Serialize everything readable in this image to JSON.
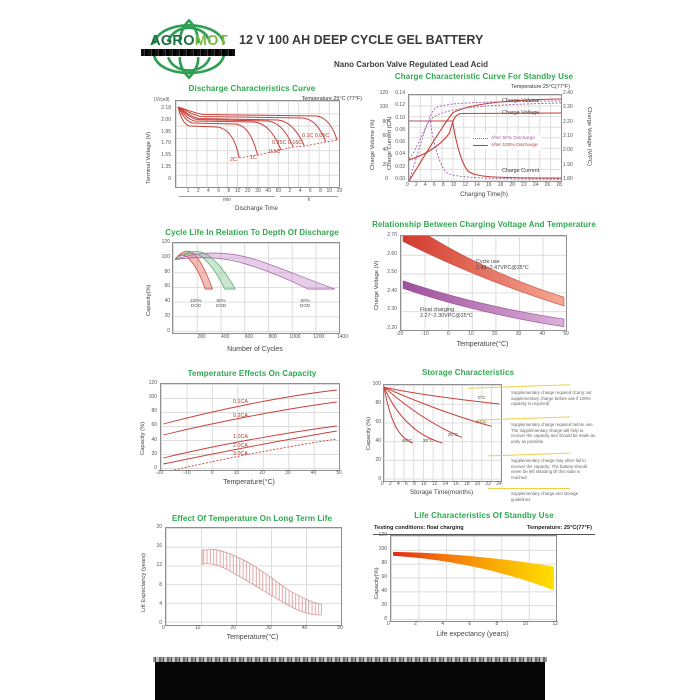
{
  "header": {
    "brand_primary": "AGRO",
    "brand_secondary": "MOT",
    "title": "12 V 100 AH DEEP CYCLE GEL BATTERY",
    "subtitle": "Nano Carbon Valve Regulated Lead Acid"
  },
  "colors": {
    "title_green": "#2fa84f",
    "brand_dark_green": "#1b6e3f",
    "brand_light_green": "#7cb947",
    "curve_red": "#c8403a",
    "curve_purple": "#9e5fa7",
    "band_green": "#7cc28c",
    "band_purple": "#c07ec2",
    "annotation_yellow": "#ecd04a",
    "life_gradient": [
      "#e02818",
      "#f97f08",
      "#ffdf00"
    ]
  },
  "chart_data": [
    {
      "type": "line",
      "title": "Discharge Characteristics Curve",
      "note": "Temperature 25°C (77°F)",
      "y_unit": "(V/cell)",
      "ylabel": "Terminal Voltage (V)",
      "xlabel": "Discharge Time",
      "y_ticks": [
        "2.18",
        "2.00",
        "1.85",
        "1.70",
        "1.55",
        "1.35",
        "0"
      ],
      "x_ticks": [
        "1",
        "2",
        "4",
        "6",
        "8",
        "10",
        "20",
        "30",
        "40",
        "60",
        "2",
        "4",
        "6",
        "8",
        "10",
        "20"
      ],
      "x_units": [
        "min",
        "h"
      ],
      "series": [
        {
          "name": "2C",
          "plateau_v": 1.93,
          "end_time": "11 min",
          "end_v": 1.62
        },
        {
          "name": "1C",
          "plateau_v": 1.97,
          "end_time": "30 min",
          "end_v": 1.64
        },
        {
          "name": "0.5C",
          "plateau_v": 2.0,
          "end_time": "70 min",
          "end_v": 1.68
        },
        {
          "name": "0.25C",
          "plateau_v": 2.02,
          "end_time": "3.5 h",
          "end_v": 1.72
        },
        {
          "name": "0.16C",
          "plateau_v": 2.03,
          "end_time": "5.5 h",
          "end_v": 1.73
        },
        {
          "name": "0.1C",
          "plateau_v": 2.05,
          "end_time": "10 h",
          "end_v": 1.76
        },
        {
          "name": "0.05C",
          "plateau_v": 2.07,
          "end_time": "20 h",
          "end_v": 1.78
        }
      ],
      "curve_labels": [
        {
          "text": "2C"
        },
        {
          "text": "1C"
        },
        {
          "text": "0.5C"
        },
        {
          "text": "0.25C 0.16C"
        },
        {
          "text": "0.1C 0.05C"
        }
      ]
    },
    {
      "type": "line",
      "title": "Charge Characteristic Curve For Standby Use",
      "note": "Temperature:25°C(77°F)",
      "axes": {
        "volume": {
          "label": "Charge Volume (%)",
          "ticks": [
            "120",
            "100",
            "80",
            "60",
            "40",
            "20",
            "0"
          ]
        },
        "current": {
          "label": "Charge Current (CA)",
          "ticks": [
            "0.14",
            "0.12",
            "0.10",
            "0.08",
            "0.06",
            "0.04",
            "0.02",
            "0.00"
          ]
        },
        "voltage": {
          "label": "Charge Voltage (V/PC)",
          "ticks": [
            "2.40",
            "2.30",
            "2.20",
            "2.10",
            "2.00",
            "1.90",
            "1.80"
          ]
        }
      },
      "xlabel": "Charging Time(h)",
      "x_ticks": [
        "0",
        "2",
        "4",
        "6",
        "8",
        "10",
        "12",
        "14",
        "16",
        "18",
        "20",
        "22",
        "24",
        "26",
        "28"
      ],
      "legend": [
        {
          "label": "After 50% Discharge",
          "style": "dotted"
        },
        {
          "label": "After 100% Discharge",
          "style": "solid"
        }
      ],
      "curve_labels": [
        {
          "text": "Charge Volume"
        },
        {
          "text": "Charge Voltage"
        },
        {
          "text": "Charge Current"
        }
      ],
      "series": [
        {
          "name": "Charge Volume (after 100% discharge)",
          "x": [
            0,
            2,
            4,
            6,
            8,
            12,
            16,
            20,
            24,
            28
          ],
          "y": [
            0,
            28,
            55,
            80,
            98,
            110,
            114,
            115,
            116,
            117
          ]
        },
        {
          "name": "Charge Volume (after 50% discharge)",
          "x": [
            0,
            2,
            4,
            6,
            8,
            12,
            16,
            20,
            24,
            28
          ],
          "y": [
            0,
            45,
            85,
            100,
            106,
            110,
            112,
            113,
            114,
            115
          ]
        },
        {
          "name": "Charge Voltage (after 100% discharge)",
          "x": [
            0,
            2,
            4,
            6,
            8,
            12,
            16,
            20,
            24,
            28
          ],
          "y": [
            1.95,
            1.99,
            2.04,
            2.12,
            2.26,
            2.28,
            2.28,
            2.28,
            2.28,
            2.28
          ]
        },
        {
          "name": "Charge Voltage (after 50% discharge)",
          "x": [
            0,
            2,
            4,
            6,
            8,
            12,
            16,
            20,
            24,
            28
          ],
          "y": [
            1.96,
            2.05,
            2.18,
            2.27,
            2.3,
            2.32,
            2.33,
            2.34,
            2.35,
            2.35
          ]
        },
        {
          "name": "Charge Current (after 100% discharge)",
          "x": [
            0,
            4,
            8,
            9,
            10,
            12,
            16,
            28
          ],
          "y": [
            0.1,
            0.1,
            0.1,
            0.06,
            0.03,
            0.01,
            0.005,
            0.005
          ]
        },
        {
          "name": "Charge Current (after 50% discharge)",
          "x": [
            0,
            2,
            4,
            5,
            6,
            8,
            12,
            28
          ],
          "y": [
            0.1,
            0.1,
            0.1,
            0.05,
            0.03,
            0.01,
            0.005,
            0.005
          ]
        }
      ]
    },
    {
      "type": "area",
      "title": "Cycle Life In Relation To Depth Of Discharge",
      "ylabel": "Capacity(%)",
      "xlabel": "Number of Cycles",
      "y_ticks": [
        "120",
        "100",
        "80",
        "60",
        "40",
        "20",
        "0"
      ],
      "x_ticks": [
        "200",
        "400",
        "600",
        "800",
        "1000",
        "1200",
        "1400"
      ],
      "bands": [
        {
          "label": "100%\nDOD",
          "color": "#e2574c",
          "approx_end_cycles": 320,
          "peak_capacity": 110
        },
        {
          "label": "80%\nDOD",
          "color": "#7cc28c",
          "approx_end_cycles": 560,
          "peak_capacity": 108
        },
        {
          "label": "50%\nDOD",
          "color": "#c07ec2",
          "approx_end_cycles": 1400,
          "peak_capacity": 106
        }
      ]
    },
    {
      "type": "area",
      "title": "Relationship Between Charging Voltage And Temperature",
      "ylabel": "Charge Voltage (V)",
      "xlabel": "Temperature(°C)",
      "y_ticks": [
        "2.70",
        "2.60",
        "2.50",
        "2.40",
        "2.30",
        "2.20"
      ],
      "x_ticks": [
        "-20",
        "-10",
        "0",
        "10",
        "20",
        "30",
        "40",
        "50"
      ],
      "bands": [
        {
          "label": "Cycle use\n2.43~2.47VPC@25°C",
          "color": "#d9473b",
          "v_at_minus20": [
            2.68,
            2.76
          ],
          "v_at_50": [
            2.33,
            2.38
          ]
        },
        {
          "label": "Float charging\n2.27~2.30VPC@25°C",
          "color": "#a4539f",
          "v_at_minus20": [
            2.42,
            2.47
          ],
          "v_at_50": [
            2.22,
            2.26
          ]
        }
      ]
    },
    {
      "type": "line",
      "title": "Temperature Effects On Capacity",
      "ylabel": "Capacity (%)",
      "xlabel": "Temperature(°C)",
      "y_ticks": [
        "120",
        "100",
        "80",
        "60",
        "40",
        "20",
        "0"
      ],
      "x_ticks": [
        "-20",
        "-10",
        "0",
        "10",
        "20",
        "30",
        "40",
        "50"
      ],
      "series": [
        {
          "name": "0.1CA",
          "x": [
            -20,
            0,
            20,
            50
          ],
          "y": [
            65,
            83,
            98,
            115
          ]
        },
        {
          "name": "0.2CA",
          "x": [
            -20,
            0,
            20,
            50
          ],
          "y": [
            50,
            68,
            82,
            97
          ]
        },
        {
          "name": "1.0CA",
          "x": [
            -20,
            0,
            20,
            50
          ],
          "y": [
            17,
            35,
            48,
            63
          ]
        },
        {
          "name": "2.0CA",
          "x": [
            -20,
            0,
            20,
            50
          ],
          "y": [
            8,
            24,
            38,
            55
          ]
        },
        {
          "name": "3.0CA",
          "style": "dashed",
          "x": [
            -15,
            0,
            20,
            50
          ],
          "y": [
            0,
            14,
            28,
            44
          ]
        }
      ]
    },
    {
      "type": "line",
      "title": "Storage Characteristics",
      "ylabel": "Capacity (%)",
      "xlabel": "Storage Time(months)",
      "y_ticks": [
        "100",
        "80",
        "60",
        "40",
        "20",
        "0"
      ],
      "x_ticks": [
        "0",
        "2",
        "4",
        "6",
        "8",
        "10",
        "12",
        "14",
        "16",
        "18",
        "20",
        "22",
        "24"
      ],
      "series": [
        {
          "name": "0°C",
          "x": [
            0,
            6,
            12,
            18,
            24
          ],
          "y": [
            100,
            95,
            90,
            86,
            82
          ]
        },
        {
          "name": "10°C",
          "x": [
            0,
            6,
            12,
            18,
            22
          ],
          "y": [
            100,
            88,
            76,
            65,
            58
          ]
        },
        {
          "name": "20°C",
          "x": [
            0,
            4,
            8,
            12,
            16
          ],
          "y": [
            100,
            82,
            66,
            54,
            46
          ]
        },
        {
          "name": "30°C",
          "x": [
            0,
            3,
            6,
            9,
            12
          ],
          "y": [
            100,
            75,
            58,
            46,
            40
          ]
        },
        {
          "name": "40°C",
          "x": [
            0,
            2,
            4,
            6
          ],
          "y": [
            100,
            68,
            48,
            40
          ]
        }
      ],
      "annotations": [
        "Supplementary charge required (Carry out supplementary charge before use if 100% capacity is required)",
        "Supplementary charge required before use. The supplementary charge will help to recover the capacity and should be made as early as possible.",
        "Supplementary charge may often fail to recover the capacity. The battery should never be left standing till this state is reached.",
        "Supplementary charge and storage guidelines"
      ]
    },
    {
      "type": "area",
      "title": "Effect Of Temperature On Long Term Life",
      "ylabel": "Lift Expectancy (years)",
      "xlabel": "Temperature(°C)",
      "y_ticks": [
        "20",
        "16",
        "12",
        "8",
        "4",
        "0"
      ],
      "x_ticks": [
        "0",
        "10",
        "20",
        "30",
        "40",
        "50"
      ],
      "band": {
        "x": [
          10,
          15,
          20,
          25,
          30,
          35,
          40,
          45
        ],
        "upper": [
          16,
          15.5,
          14,
          12,
          10,
          8,
          6,
          4.5
        ],
        "lower": [
          13,
          12.5,
          11,
          9,
          7,
          5,
          3,
          2.2
        ]
      }
    },
    {
      "type": "area",
      "title": "Life Characteristics Of Standby Use",
      "conditions": "Testing conditions: float charging",
      "note": "Temperature: 25°C(77°F)",
      "ylabel": "Capacity(%)",
      "xlabel": "Life expectancy (years)",
      "y_ticks": [
        "120",
        "100",
        "80",
        "60",
        "40",
        "20",
        "0"
      ],
      "x_ticks": [
        "0",
        "2",
        "4",
        "6",
        "8",
        "10",
        "12"
      ],
      "band": {
        "x": [
          0,
          2,
          4,
          6,
          8,
          10,
          12
        ],
        "upper": [
          100,
          99,
          97,
          95,
          92,
          88,
          78
        ],
        "lower": [
          95,
          93,
          90,
          86,
          80,
          68,
          45
        ]
      }
    }
  ]
}
